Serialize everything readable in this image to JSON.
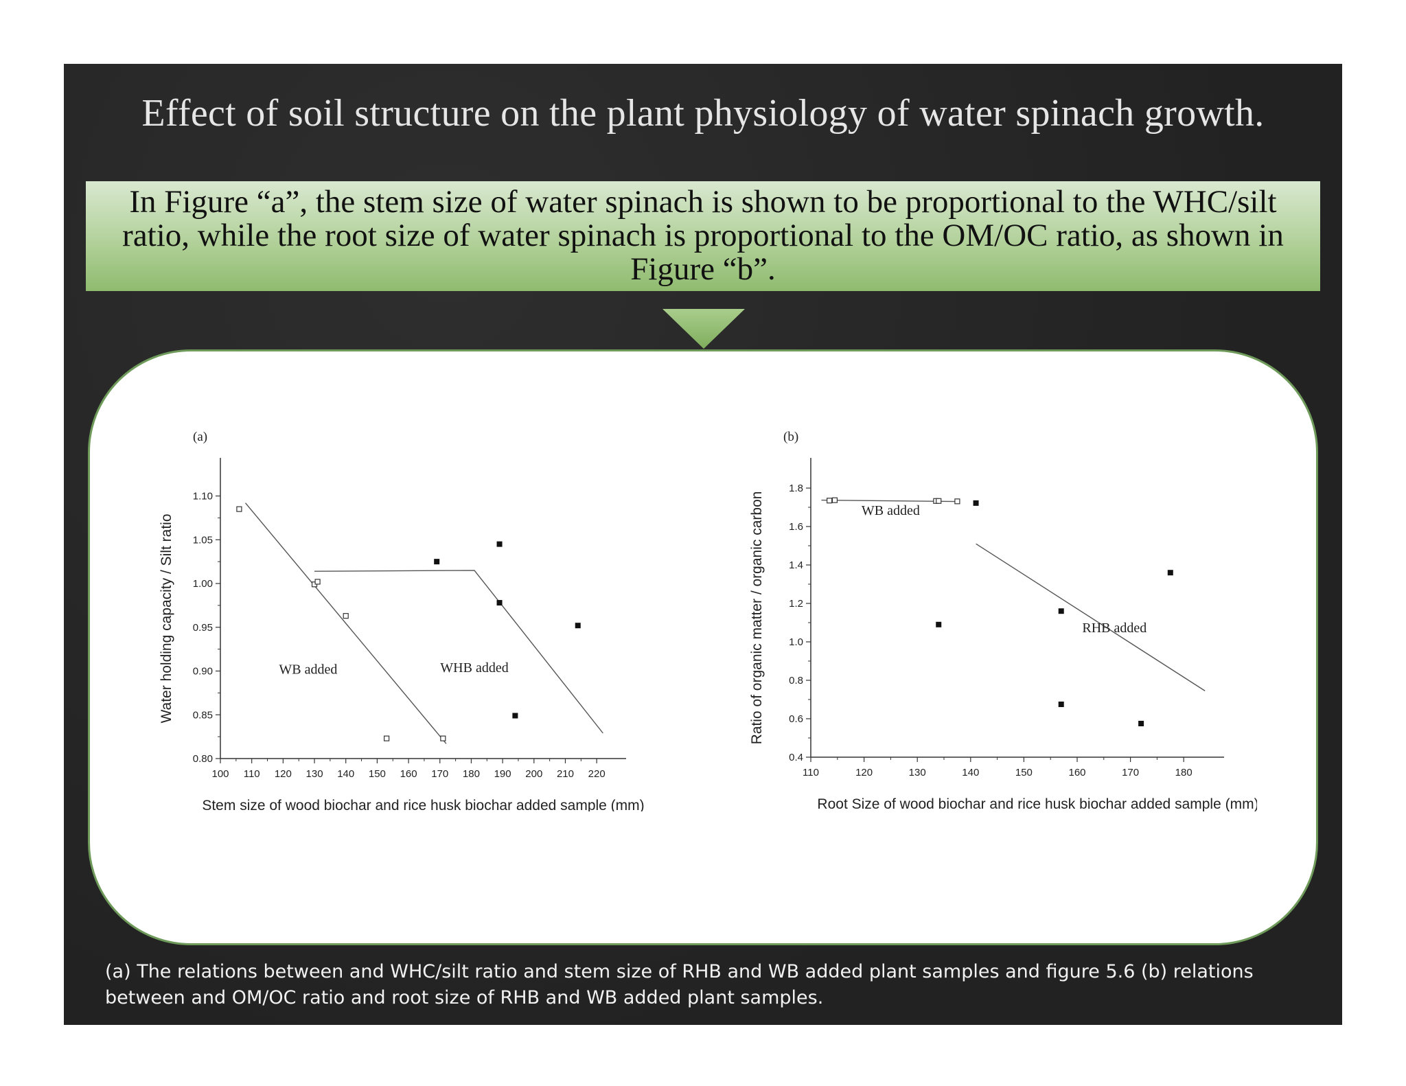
{
  "slide": {
    "title": "Effect of soil structure on the plant physiology of water spinach growth.",
    "callout_text": "In Figure “a”, the stem size of water spinach is shown to be proportional to the WHC/silt ratio, while the root size of water spinach is proportional to the OM/OC ratio, as shown in Figure “b”.",
    "caption": "(a) The relations between and WHC/silt ratio and stem size of RHB and WB added plant samples and figure 5.6 (b) relations between and OM/OC ratio and root size of RHB and WB added plant samples.",
    "colors": {
      "background": "#262626",
      "callout": "#b2d19a",
      "panel_border": "#6e9a5a",
      "arrow": "#8fbb6e"
    }
  },
  "chart_data": [
    {
      "type": "scatter",
      "panel_label": "(a)",
      "xlabel": "Stem size of wood biochar and rice husk biochar added sample (mm)",
      "ylabel": "Water holding capacity / Silt ratio",
      "xlim": [
        100,
        225
      ],
      "ylim": [
        0.8,
        1.12
      ],
      "xticks": [
        100,
        110,
        120,
        130,
        140,
        150,
        160,
        170,
        180,
        190,
        200,
        210,
        220
      ],
      "xtick_labels": [
        "100",
        "110",
        "120",
        "130",
        "140",
        "150",
        "160",
        "170",
        "180",
        "190",
        "200",
        "210",
        "220"
      ],
      "yticks": [
        0.8,
        0.85,
        0.9,
        0.95,
        1.0,
        1.05,
        1.1
      ],
      "ytick_labels": [
        "0.80",
        "0.85",
        "0.90",
        "0.95",
        "1.00",
        "1.05",
        "1.10"
      ],
      "grid": false,
      "series": [
        {
          "name": "WB added",
          "marker": "open-square",
          "points": [
            [
              106,
              1.085
            ],
            [
              130,
              0.999
            ],
            [
              131,
              1.002
            ],
            [
              140,
              0.963
            ],
            [
              153,
              0.823
            ],
            [
              171,
              0.823
            ]
          ],
          "line": [
            [
              108,
              1.092
            ],
            [
              172,
              0.817
            ]
          ],
          "label_at": [
            128,
            0.897
          ]
        },
        {
          "name": "WHB added",
          "marker": "filled-square",
          "points": [
            [
              169,
              1.025
            ],
            [
              189,
              1.045
            ],
            [
              189,
              0.978
            ],
            [
              194,
              0.849
            ],
            [
              214,
              0.952
            ]
          ],
          "line": [
            [
              130,
              1.014
            ],
            [
              181,
              1.015
            ],
            [
              222,
              0.829
            ]
          ],
          "label_at": [
            181,
            0.899
          ]
        }
      ]
    },
    {
      "type": "scatter",
      "panel_label": "(b)",
      "xlabel": "Root Size of wood biochar and rice husk biochar added sample (mm)",
      "ylabel": "Ratio of organic matter / organic carbon",
      "xlim": [
        110,
        185
      ],
      "ylim": [
        0.4,
        1.85
      ],
      "xticks": [
        110,
        120,
        130,
        140,
        150,
        160,
        170,
        180
      ],
      "xtick_labels": [
        "110",
        "120",
        "130",
        "140",
        "150",
        "160",
        "170",
        "180"
      ],
      "yticks": [
        0.4,
        0.6,
        0.8,
        1.0,
        1.2,
        1.4,
        1.6,
        1.8
      ],
      "ytick_labels": [
        "0.4",
        "0.6",
        "0.8",
        "1.0",
        "1.2",
        "1.4",
        "1.6",
        "1.8"
      ],
      "grid": false,
      "series": [
        {
          "name": "WB added",
          "marker": "open-square",
          "points": [
            [
              113.5,
              1.735
            ],
            [
              114.5,
              1.737
            ],
            [
              133.5,
              1.733
            ],
            [
              134,
              1.733
            ],
            [
              137.5,
              1.731
            ]
          ],
          "line": [
            [
              112,
              1.737
            ],
            [
              137.5,
              1.73
            ]
          ],
          "label_at": [
            125,
            1.66
          ]
        },
        {
          "name": "RHB added",
          "marker": "filled-square",
          "points": [
            [
              141,
              1.722
            ],
            [
              134,
              1.09
            ],
            [
              157,
              1.16
            ],
            [
              157,
              0.675
            ],
            [
              172,
              0.575
            ],
            [
              177.5,
              1.36
            ]
          ],
          "line": [
            [
              141,
              1.51
            ],
            [
              184,
              0.745
            ]
          ],
          "label_at": [
            167,
            1.05
          ]
        }
      ]
    }
  ]
}
